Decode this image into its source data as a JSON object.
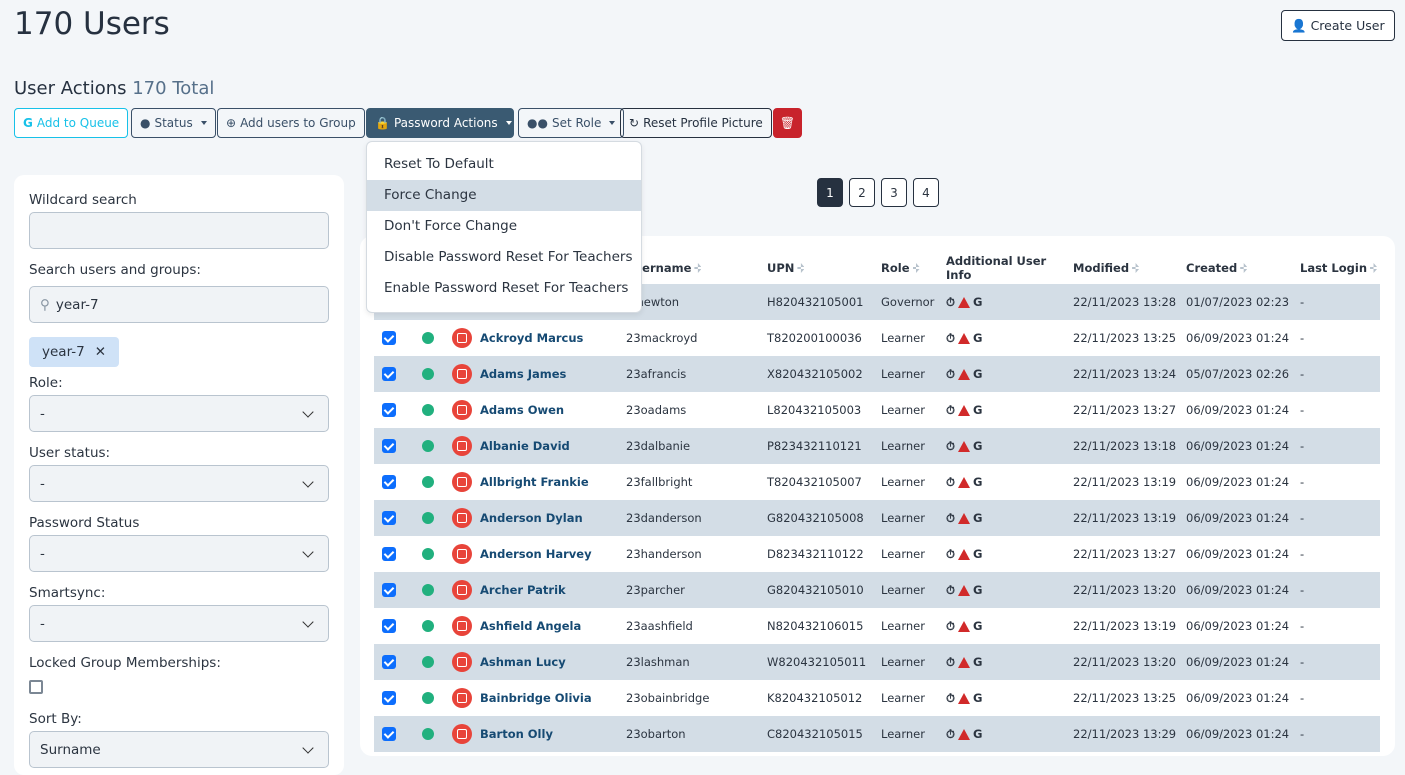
{
  "title": "170 Users",
  "create_user": "Create User",
  "actions": {
    "label": "User Actions",
    "total": "170 Total",
    "add_queue": "Add to Queue",
    "status": "Status",
    "add_group": "Add users to Group",
    "password": "Password Actions",
    "set_role": "Set Role",
    "reset_pic": "Reset Profile Picture"
  },
  "password_menu": [
    "Reset To Default",
    "Force Change",
    "Don't Force Change",
    "Disable Password Reset For Teachers",
    "Enable Password Reset For Teachers"
  ],
  "password_menu_active": "Force Change",
  "filters": {
    "wildcard": "Wildcard search",
    "wildcard_value": "",
    "search_groups": "Search users and groups:",
    "search_value": "year-7",
    "chip": "year-7",
    "role": "Role:",
    "role_value": "-",
    "user_status": "User status:",
    "user_status_value": "-",
    "password_status": "Password Status",
    "password_status_value": "-",
    "smartsync": "Smartsync:",
    "smartsync_value": "-",
    "locked": "Locked Group Memberships:",
    "sort_by": "Sort By:",
    "sort_value": "Surname"
  },
  "pagination": [
    "1",
    "2",
    "3",
    "4"
  ],
  "table": {
    "headers": [
      "Username",
      "UPN",
      "Role",
      "Additional User Info",
      "Modified",
      "Created",
      "Last Login"
    ],
    "rows": [
      [
        "",
        "lgnewton",
        "H820432105001",
        "Governor",
        "22/11/2023 13:28",
        "01/07/2023 02:23",
        "-"
      ],
      [
        "Ackroyd Marcus",
        "23mackroyd",
        "T820200100036",
        "Learner",
        "22/11/2023 13:25",
        "06/09/2023 01:24",
        "-"
      ],
      [
        "Adams James",
        "23afrancis",
        "X820432105002",
        "Learner",
        "22/11/2023 13:24",
        "05/07/2023 02:26",
        "-"
      ],
      [
        "Adams Owen",
        "23oadams",
        "L820432105003",
        "Learner",
        "22/11/2023 13:27",
        "06/09/2023 01:24",
        "-"
      ],
      [
        "Albanie David",
        "23dalbanie",
        "P823432110121",
        "Learner",
        "22/11/2023 13:18",
        "06/09/2023 01:24",
        "-"
      ],
      [
        "Allbright Frankie",
        "23fallbright",
        "T820432105007",
        "Learner",
        "22/11/2023 13:19",
        "06/09/2023 01:24",
        "-"
      ],
      [
        "Anderson Dylan",
        "23danderson",
        "G820432105008",
        "Learner",
        "22/11/2023 13:19",
        "06/09/2023 01:24",
        "-"
      ],
      [
        "Anderson Harvey",
        "23handerson",
        "D823432110122",
        "Learner",
        "22/11/2023 13:27",
        "06/09/2023 01:24",
        "-"
      ],
      [
        "Archer Patrik",
        "23parcher",
        "G820432105010",
        "Learner",
        "22/11/2023 13:20",
        "06/09/2023 01:24",
        "-"
      ],
      [
        "Ashfield Angela",
        "23aashfield",
        "N820432106015",
        "Learner",
        "22/11/2023 13:19",
        "06/09/2023 01:24",
        "-"
      ],
      [
        "Ashman Lucy",
        "23lashman",
        "W820432105011",
        "Learner",
        "22/11/2023 13:20",
        "06/09/2023 01:24",
        "-"
      ],
      [
        "Bainbridge Olivia",
        "23obainbridge",
        "K820432105012",
        "Learner",
        "22/11/2023 13:25",
        "06/09/2023 01:24",
        "-"
      ],
      [
        "Barton Olly",
        "23obarton",
        "C820432105015",
        "Learner",
        "22/11/2023 13:29",
        "06/09/2023 01:24",
        "-"
      ]
    ]
  },
  "colors": {
    "primary": "#263140",
    "accent_cyan": "#17c1e8",
    "danger": "#c8232c",
    "row_shade": "#d3dde6",
    "status_green": "#21b07e"
  }
}
